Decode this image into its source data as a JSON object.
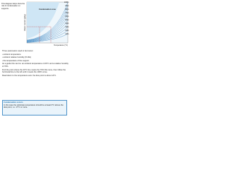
{
  "intro": "This diagram helps show the risk of condensation on supports.",
  "diagram": {
    "zone_label": "Condensation zone",
    "y_label": "Water content (g/kg)",
    "x_label": "Temperature (°C)",
    "curve_labels": [
      "100%",
      "90%",
      "80%",
      "70%",
      "60%",
      "50%",
      "40%",
      "30%",
      "20%",
      "10%"
    ]
  },
  "paragraphs": [
    "Three parameters need to be known:",
    "• ambient temperature",
    "• ambient relative humidity (% RH)",
    "• the temperature of the support.",
    "As a guide this can be: an ambient temperature of 20°C and a relative humidity of 70%.",
    "Find the point where the 20°C line meets the 70% RH curve, then follow the horizontal line to the left until it meets the 100% curve.",
    "Read down to the temperature axis: the dew point is about 14°C."
  ],
  "note": {
    "title": "Condensation occurs",
    "text": "In this case the substrate temperature should be at least 3°C above the dew point, i.e. 17°C or more."
  }
}
